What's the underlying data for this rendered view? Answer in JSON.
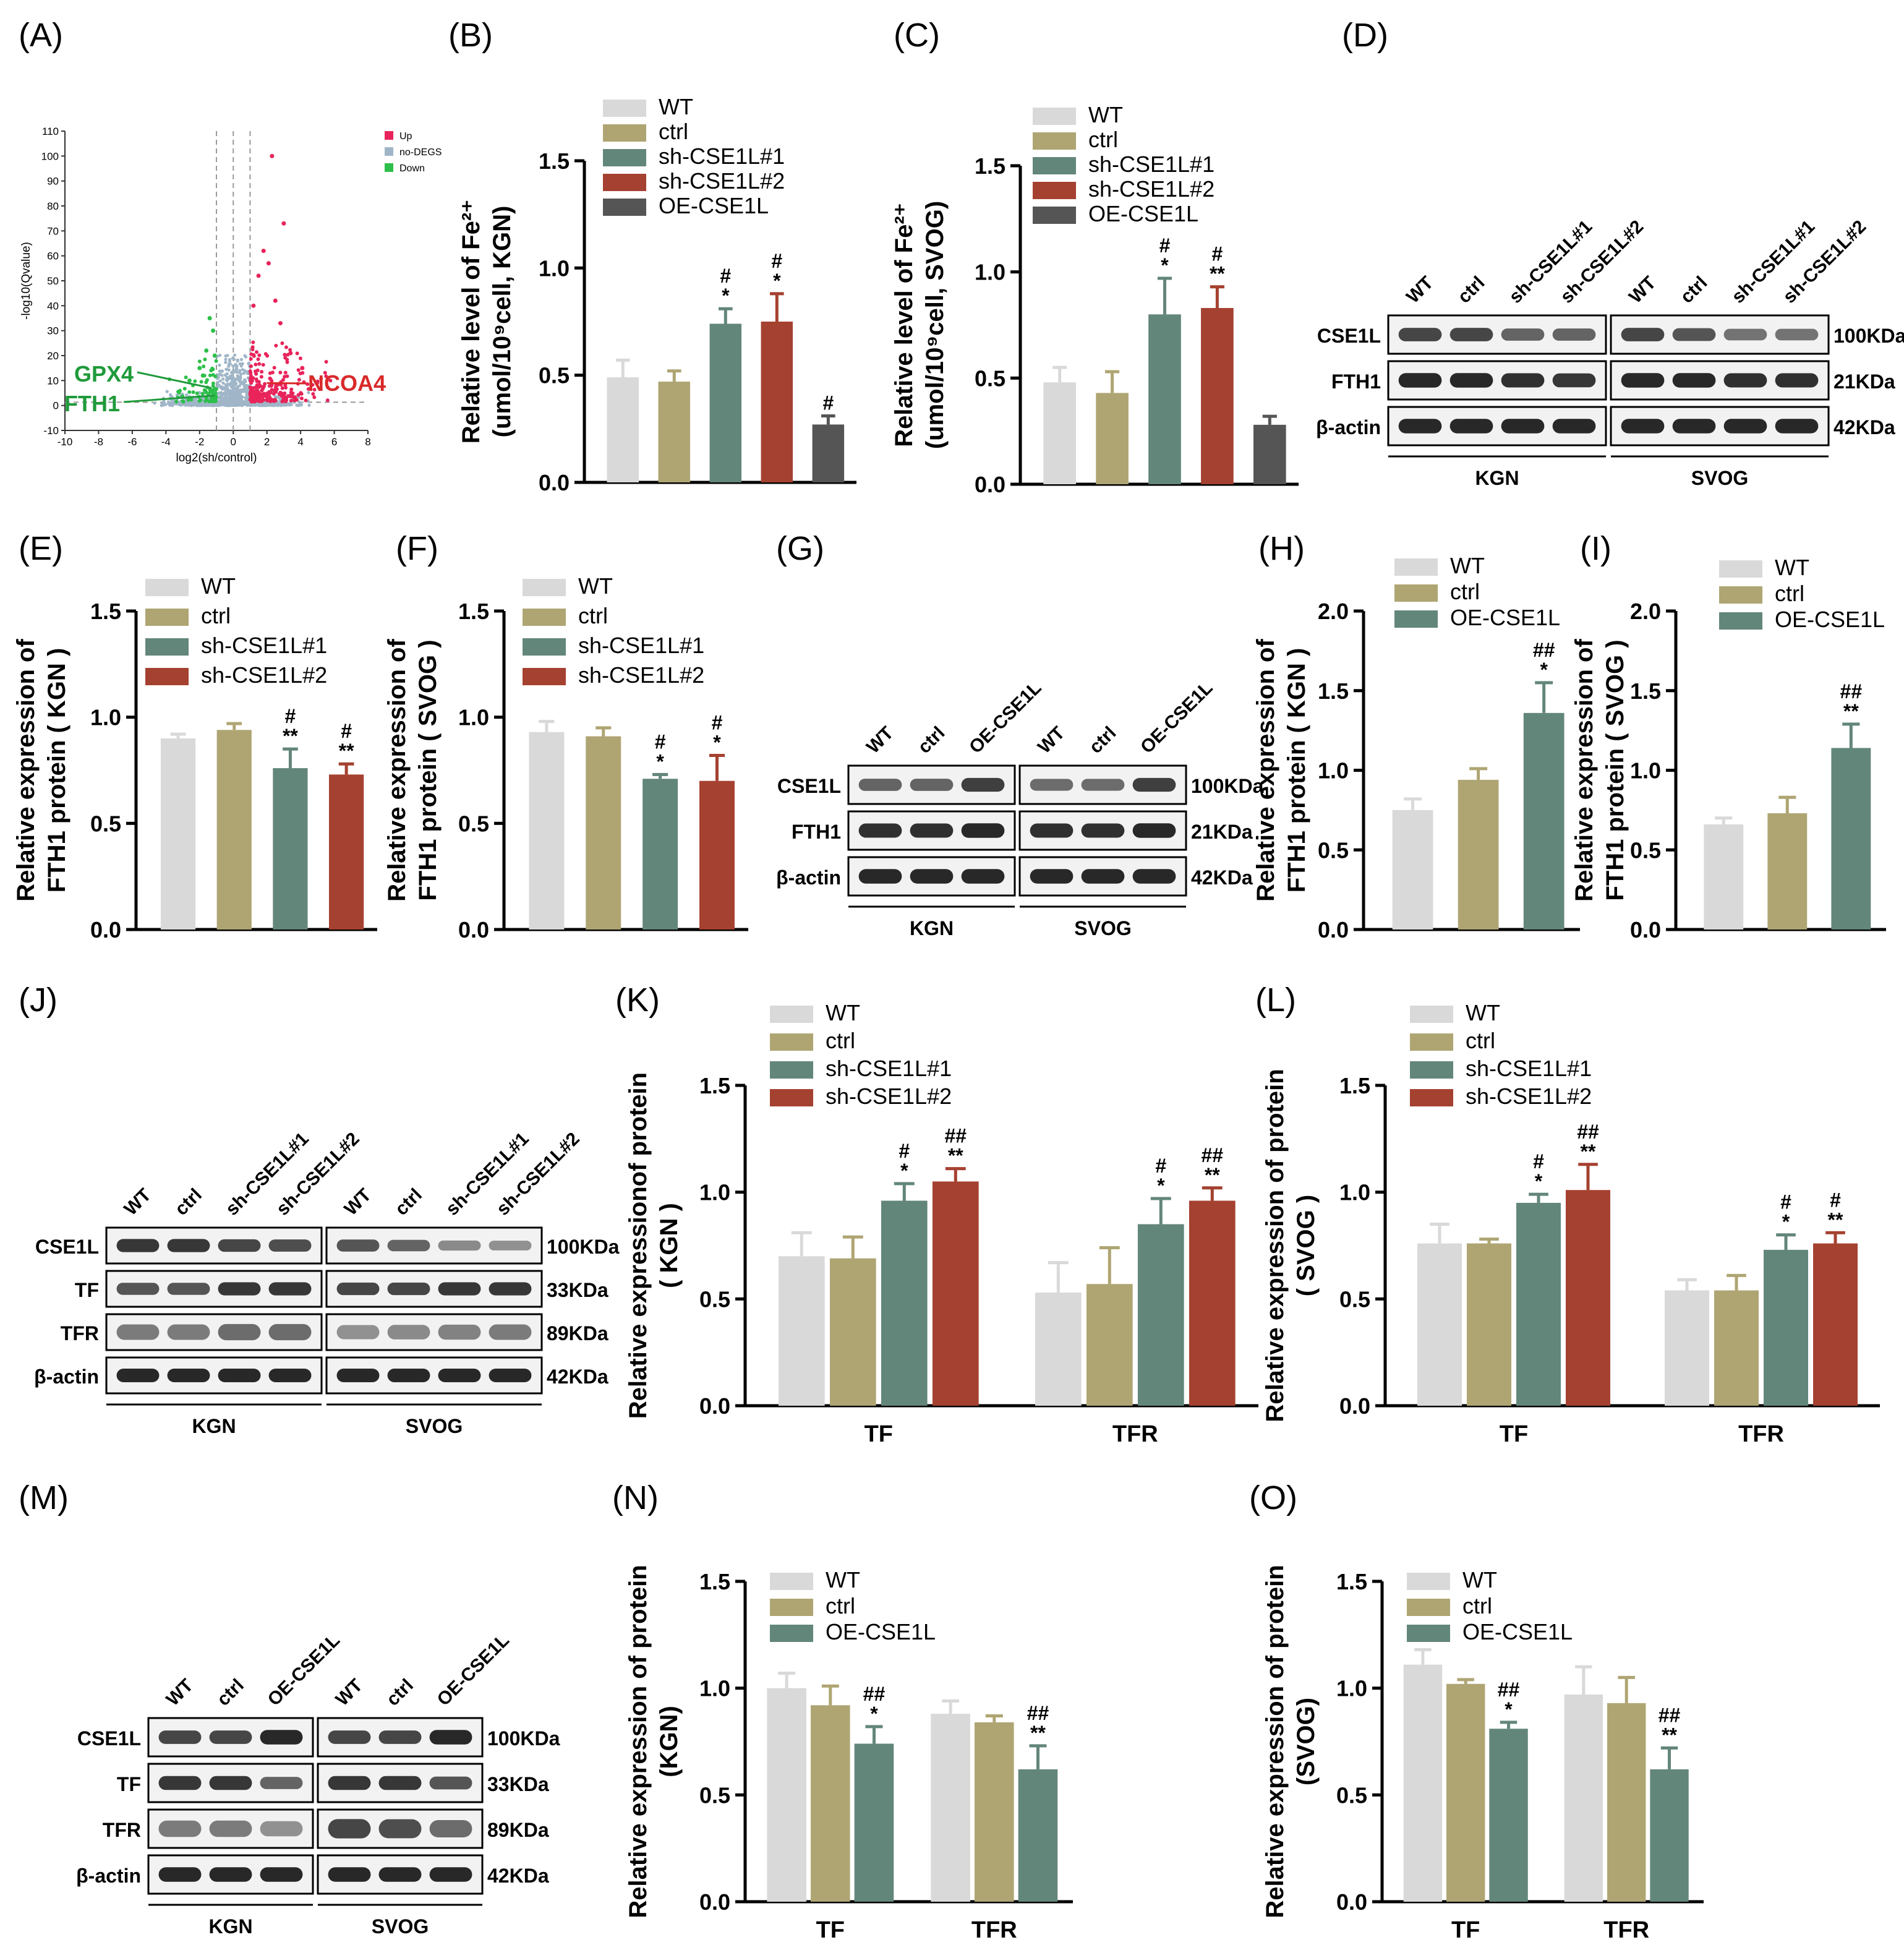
{
  "colors": {
    "WT": "#d9d9d9",
    "ctrl": "#afa573",
    "sh1": "#63867a",
    "sh2": "#a54130",
    "OE": "#555555",
    "OE_green": "#63867a",
    "up": "#e8245a",
    "nodeg": "#a0b6c8",
    "down": "#2dbf4a",
    "gpx_label": "#1f9a3a",
    "ncoa_label": "#d92a2a"
  },
  "panel_letters": [
    "(A)",
    "(B)",
    "(C)",
    "(D)",
    "(E)",
    "(F)",
    "(G)",
    "(H)",
    "(I)",
    "(J)",
    "(K)",
    "(L)",
    "(M)",
    "(N)",
    "(O)"
  ],
  "blots": {
    "D": {
      "lanes_left": [
        "WT",
        "ctrl",
        "sh-CSE1L#1",
        "sh-CSE1L#2"
      ],
      "lanes_right": [
        "WT",
        "ctrl",
        "sh-CSE1L#1",
        "sh-CSE1L#2"
      ],
      "rows": [
        {
          "label": "CSE1L",
          "kda": "100KDa",
          "intensity": [
            0.8,
            0.8,
            0.6,
            0.6,
            0.8,
            0.7,
            0.5,
            0.5
          ]
        },
        {
          "label": "FTH1",
          "kda": "21KDa",
          "intensity": [
            1,
            1,
            0.95,
            0.9,
            1,
            1,
            0.95,
            0.95
          ]
        },
        {
          "label": "β-actin",
          "kda": "42KDa",
          "intensity": [
            1,
            1,
            1,
            1,
            1,
            1,
            1,
            1
          ]
        }
      ],
      "groups": [
        "KGN",
        "SVOG"
      ]
    },
    "G": {
      "lanes_left": [
        "WT",
        "ctrl",
        "OE-CSE1L"
      ],
      "lanes_right": [
        "WT",
        "ctrl",
        "OE-CSE1L"
      ],
      "rows": [
        {
          "label": "CSE1L",
          "kda": "100KDa",
          "intensity": [
            0.6,
            0.6,
            0.85,
            0.55,
            0.55,
            0.85
          ]
        },
        {
          "label": "FTH1",
          "kda": "21KDa",
          "intensity": [
            0.95,
            0.95,
            1,
            0.95,
            0.95,
            1
          ]
        },
        {
          "label": "β-actin",
          "kda": "42KDa",
          "intensity": [
            1,
            1,
            1,
            1,
            1,
            1
          ]
        }
      ],
      "groups": [
        "KGN",
        "SVOG"
      ]
    },
    "J": {
      "lanes_left": [
        "WT",
        "ctrl",
        "sh-CSE1L#1",
        "sh-CSE1L#2"
      ],
      "lanes_right": [
        "WT",
        "ctrl",
        "sh-CSE1L#1",
        "sh-CSE1L#2"
      ],
      "rows": [
        {
          "label": "CSE1L",
          "kda": "100KDa",
          "intensity": [
            0.9,
            0.9,
            0.8,
            0.75,
            0.7,
            0.6,
            0.35,
            0.3
          ]
        },
        {
          "label": "TF",
          "kda": "33KDa",
          "intensity": [
            0.7,
            0.7,
            0.9,
            0.9,
            0.8,
            0.8,
            0.9,
            0.9
          ]
        },
        {
          "label": "TFR",
          "kda": "89KDa",
          "intensity": [
            0.45,
            0.45,
            0.55,
            0.55,
            0.3,
            0.35,
            0.4,
            0.45
          ]
        },
        {
          "label": "β-actin",
          "kda": "42KDa",
          "intensity": [
            1,
            1,
            1,
            1,
            1,
            1,
            1,
            1
          ]
        }
      ],
      "groups": [
        "KGN",
        "SVOG"
      ]
    },
    "M": {
      "lanes_left": [
        "WT",
        "ctrl",
        "OE-CSE1L"
      ],
      "lanes_right": [
        "WT",
        "ctrl",
        "OE-CSE1L"
      ],
      "rows": [
        {
          "label": "CSE1L",
          "kda": "100KDa",
          "intensity": [
            0.8,
            0.8,
            1,
            0.8,
            0.8,
            1
          ]
        },
        {
          "label": "TF",
          "kda": "33KDa",
          "intensity": [
            0.9,
            0.9,
            0.6,
            0.9,
            0.9,
            0.7
          ]
        },
        {
          "label": "TFR",
          "kda": "89KDa",
          "intensity": [
            0.45,
            0.45,
            0.3,
            0.8,
            0.75,
            0.55
          ]
        },
        {
          "label": "β-actin",
          "kda": "42KDa",
          "intensity": [
            1,
            1,
            1,
            1,
            1,
            1
          ]
        }
      ],
      "groups": [
        "KGN",
        "SVOG"
      ]
    }
  },
  "chart_data": [
    {
      "id": "A",
      "type": "scatter",
      "title": "",
      "xlabel": "log2(sh/control)",
      "ylabel": "-log10(Qvalue)",
      "xlim": [
        -10,
        8
      ],
      "ylim": [
        -10,
        110
      ],
      "xticks": [
        -10,
        -8,
        -6,
        -4,
        -2,
        0,
        2,
        4,
        6,
        8
      ],
      "yticks": [
        -10,
        0,
        10,
        20,
        30,
        40,
        50,
        60,
        70,
        80,
        90,
        100,
        110
      ],
      "legend": [
        "Up",
        "no-DEGS",
        "Down"
      ],
      "annotations": [
        {
          "label": "GPX4",
          "x": -1.3,
          "y": 7
        },
        {
          "label": "FTH1",
          "x": -1.1,
          "y": 4
        },
        {
          "label": "NCOA4",
          "x": 2.0,
          "y": 9
        }
      ],
      "highlight_points_up": [
        [
          2.3,
          100
        ],
        [
          3.0,
          73
        ],
        [
          2.5,
          42
        ],
        [
          1.8,
          62
        ],
        [
          2.1,
          57
        ],
        [
          1.5,
          52
        ],
        [
          1.2,
          40
        ],
        [
          2.8,
          33
        ],
        [
          3.4,
          21
        ],
        [
          4.1,
          15
        ]
      ],
      "highlight_points_down": [
        [
          -1.4,
          35
        ],
        [
          -1.2,
          30
        ],
        [
          -1.6,
          22
        ],
        [
          -2.0,
          15
        ],
        [
          -2.6,
          10
        ],
        [
          -1.8,
          12
        ],
        [
          -1.1,
          20
        ]
      ]
    },
    {
      "id": "B",
      "type": "bar",
      "ylabel": [
        "Relative level of Fe²⁺",
        "(umol/10⁹cell, KGN)"
      ],
      "ylim": [
        0,
        1.5
      ],
      "yticks": [
        0.0,
        0.5,
        1.0,
        1.5
      ],
      "legend": [
        "WT",
        "ctrl",
        "sh-CSE1L#1",
        "sh-CSE1L#2",
        "OE-CSE1L"
      ],
      "series": [
        {
          "name": "WT",
          "value": 0.49,
          "err": 0.08,
          "sig": ""
        },
        {
          "name": "ctrl",
          "value": 0.47,
          "err": 0.05,
          "sig": ""
        },
        {
          "name": "sh-CSE1L#1",
          "value": 0.74,
          "err": 0.07,
          "sig": "#\n*"
        },
        {
          "name": "sh-CSE1L#2",
          "value": 0.75,
          "err": 0.13,
          "sig": "#\n*"
        },
        {
          "name": "OE-CSE1L",
          "value": 0.27,
          "err": 0.04,
          "sig": "#"
        }
      ]
    },
    {
      "id": "C",
      "type": "bar",
      "ylabel": [
        "Relative level of Fe²⁺",
        "(umol/10⁹cell, SVOG)"
      ],
      "ylim": [
        0,
        1.5
      ],
      "yticks": [
        0.0,
        0.5,
        1.0,
        1.5
      ],
      "legend": [
        "WT",
        "ctrl",
        "sh-CSE1L#1",
        "sh-CSE1L#2",
        "OE-CSE1L"
      ],
      "series": [
        {
          "name": "WT",
          "value": 0.48,
          "err": 0.07,
          "sig": ""
        },
        {
          "name": "ctrl",
          "value": 0.43,
          "err": 0.1,
          "sig": ""
        },
        {
          "name": "sh-CSE1L#1",
          "value": 0.8,
          "err": 0.17,
          "sig": "#\n*"
        },
        {
          "name": "sh-CSE1L#2",
          "value": 0.83,
          "err": 0.1,
          "sig": "#\n**"
        },
        {
          "name": "OE-CSE1L",
          "value": 0.28,
          "err": 0.04,
          "sig": ""
        }
      ]
    },
    {
      "id": "E",
      "type": "bar",
      "ylabel": [
        "Relative expression of",
        "FTH1 protein ( KGN )"
      ],
      "ylim": [
        0,
        1.5
      ],
      "yticks": [
        0.0,
        0.5,
        1.0,
        1.5
      ],
      "legend": [
        "WT",
        "ctrl",
        "sh-CSE1L#1",
        "sh-CSE1L#2"
      ],
      "series": [
        {
          "name": "WT",
          "value": 0.9,
          "err": 0.02,
          "sig": ""
        },
        {
          "name": "ctrl",
          "value": 0.94,
          "err": 0.03,
          "sig": ""
        },
        {
          "name": "sh-CSE1L#1",
          "value": 0.76,
          "err": 0.09,
          "sig": "#\n**"
        },
        {
          "name": "sh-CSE1L#2",
          "value": 0.73,
          "err": 0.05,
          "sig": "#\n**"
        }
      ]
    },
    {
      "id": "F",
      "type": "bar",
      "ylabel": [
        "Relative expression of",
        "FTH1 protein ( SVOG )"
      ],
      "ylim": [
        0,
        1.5
      ],
      "yticks": [
        0.0,
        0.5,
        1.0,
        1.5
      ],
      "legend": [
        "WT",
        "ctrl",
        "sh-CSE1L#1",
        "sh-CSE1L#2"
      ],
      "series": [
        {
          "name": "WT",
          "value": 0.93,
          "err": 0.05,
          "sig": ""
        },
        {
          "name": "ctrl",
          "value": 0.91,
          "err": 0.04,
          "sig": ""
        },
        {
          "name": "sh-CSE1L#1",
          "value": 0.71,
          "err": 0.02,
          "sig": "#\n*"
        },
        {
          "name": "sh-CSE1L#2",
          "value": 0.7,
          "err": 0.12,
          "sig": "#\n*"
        }
      ]
    },
    {
      "id": "H",
      "type": "bar",
      "ylabel": [
        "Relative expression of",
        "FTH1 protein ( KGN )"
      ],
      "ylim": [
        0,
        2.0
      ],
      "yticks": [
        0.0,
        0.5,
        1.0,
        1.5,
        2.0
      ],
      "legend": [
        "WT",
        "ctrl",
        "OE-CSE1L"
      ],
      "series": [
        {
          "name": "WT",
          "value": 0.75,
          "err": 0.07,
          "sig": ""
        },
        {
          "name": "ctrl",
          "value": 0.94,
          "err": 0.07,
          "sig": ""
        },
        {
          "name": "OE-CSE1L",
          "value": 1.36,
          "err": 0.19,
          "sig": "##\n*"
        }
      ]
    },
    {
      "id": "I",
      "type": "bar",
      "ylabel": [
        "Relative expression of",
        "FTH1 protein ( SVOG )"
      ],
      "ylim": [
        0,
        2.0
      ],
      "yticks": [
        0.0,
        0.5,
        1.0,
        1.5,
        2.0
      ],
      "legend": [
        "WT",
        "ctrl",
        "OE-CSE1L"
      ],
      "series": [
        {
          "name": "WT",
          "value": 0.66,
          "err": 0.04,
          "sig": ""
        },
        {
          "name": "ctrl",
          "value": 0.73,
          "err": 0.1,
          "sig": ""
        },
        {
          "name": "OE-CSE1L",
          "value": 1.14,
          "err": 0.15,
          "sig": "##\n**"
        }
      ]
    },
    {
      "id": "K",
      "type": "grouped-bar",
      "ylabel": [
        "Relative expressionof protein",
        "( KGN )"
      ],
      "ylim": [
        0,
        1.5
      ],
      "yticks": [
        0.0,
        0.5,
        1.0,
        1.5
      ],
      "categories": [
        "TF",
        "TFR"
      ],
      "legend": [
        "WT",
        "ctrl",
        "sh-CSE1L#1",
        "sh-CSE1L#2"
      ],
      "series": [
        {
          "name": "WT",
          "values": [
            0.7,
            0.53
          ],
          "err": [
            0.11,
            0.14
          ],
          "sig": [
            "",
            ""
          ]
        },
        {
          "name": "ctrl",
          "values": [
            0.69,
            0.57
          ],
          "err": [
            0.1,
            0.17
          ],
          "sig": [
            "",
            ""
          ]
        },
        {
          "name": "sh-CSE1L#1",
          "values": [
            0.96,
            0.85
          ],
          "err": [
            0.08,
            0.12
          ],
          "sig": [
            "#\n*",
            "#\n*"
          ]
        },
        {
          "name": "sh-CSE1L#2",
          "values": [
            1.05,
            0.96
          ],
          "err": [
            0.06,
            0.06
          ],
          "sig": [
            "##\n**",
            "##\n**"
          ]
        }
      ]
    },
    {
      "id": "L",
      "type": "grouped-bar",
      "ylabel": [
        "Relative expression of protein",
        "( SVOG )"
      ],
      "ylim": [
        0,
        1.5
      ],
      "yticks": [
        0.0,
        0.5,
        1.0,
        1.5
      ],
      "categories": [
        "TF",
        "TFR"
      ],
      "legend": [
        "WT",
        "ctrl",
        "sh-CSE1L#1",
        "sh-CSE1L#2"
      ],
      "series": [
        {
          "name": "WT",
          "values": [
            0.76,
            0.54
          ],
          "err": [
            0.09,
            0.05
          ],
          "sig": [
            "",
            ""
          ]
        },
        {
          "name": "ctrl",
          "values": [
            0.76,
            0.54
          ],
          "err": [
            0.02,
            0.07
          ],
          "sig": [
            "",
            ""
          ]
        },
        {
          "name": "sh-CSE1L#1",
          "values": [
            0.95,
            0.73
          ],
          "err": [
            0.04,
            0.07
          ],
          "sig": [
            "#\n*",
            "#\n*"
          ]
        },
        {
          "name": "sh-CSE1L#2",
          "values": [
            1.01,
            0.76
          ],
          "err": [
            0.12,
            0.05
          ],
          "sig": [
            "##\n**",
            "#\n**"
          ]
        }
      ]
    },
    {
      "id": "N",
      "type": "grouped-bar",
      "ylabel": [
        "Relative expression of protein",
        "(KGN)"
      ],
      "ylim": [
        0,
        1.5
      ],
      "yticks": [
        0.0,
        0.5,
        1.0,
        1.5
      ],
      "categories": [
        "TF",
        "TFR"
      ],
      "legend": [
        "WT",
        "ctrl",
        "OE-CSE1L"
      ],
      "series": [
        {
          "name": "WT",
          "values": [
            1.0,
            0.88
          ],
          "err": [
            0.07,
            0.06
          ],
          "sig": [
            "",
            ""
          ]
        },
        {
          "name": "ctrl",
          "values": [
            0.92,
            0.84
          ],
          "err": [
            0.09,
            0.03
          ],
          "sig": [
            "",
            ""
          ]
        },
        {
          "name": "OE-CSE1L",
          "values": [
            0.74,
            0.62
          ],
          "err": [
            0.08,
            0.11
          ],
          "sig": [
            "##\n*",
            "##\n**"
          ]
        }
      ]
    },
    {
      "id": "O",
      "type": "grouped-bar",
      "ylabel": [
        "Relative expression of protein",
        "(SVOG)"
      ],
      "ylim": [
        0,
        1.5
      ],
      "yticks": [
        0.0,
        0.5,
        1.0,
        1.5
      ],
      "categories": [
        "TF",
        "TFR"
      ],
      "legend": [
        "WT",
        "ctrl",
        "OE-CSE1L"
      ],
      "series": [
        {
          "name": "WT",
          "values": [
            1.11,
            0.97
          ],
          "err": [
            0.07,
            0.13
          ],
          "sig": [
            "",
            ""
          ]
        },
        {
          "name": "ctrl",
          "values": [
            1.02,
            0.93
          ],
          "err": [
            0.02,
            0.12
          ],
          "sig": [
            "",
            ""
          ]
        },
        {
          "name": "OE-CSE1L",
          "values": [
            0.81,
            0.62
          ],
          "err": [
            0.03,
            0.1
          ],
          "sig": [
            "##\n*",
            "##\n**"
          ]
        }
      ]
    }
  ]
}
